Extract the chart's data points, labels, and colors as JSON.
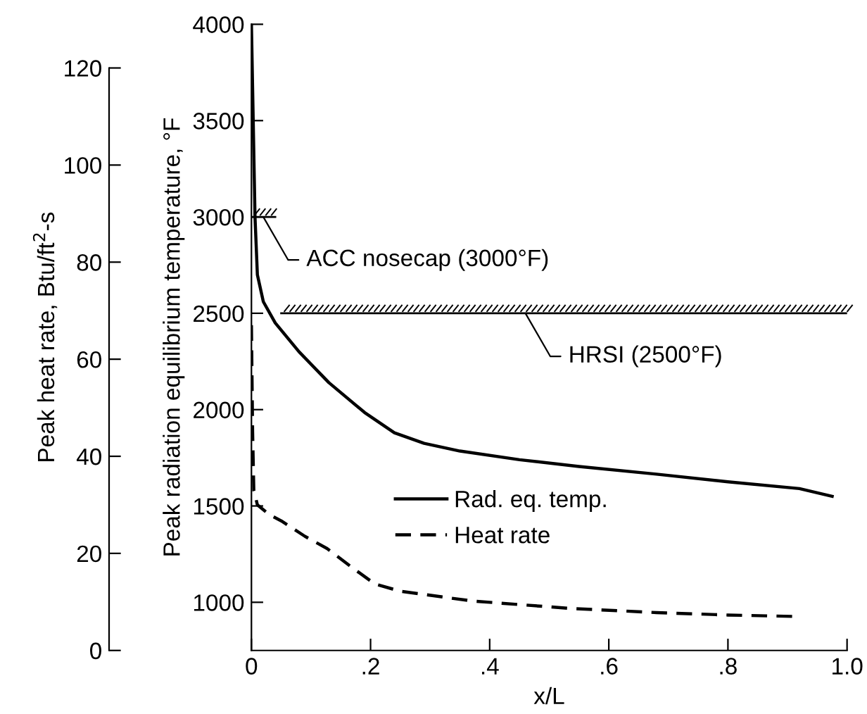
{
  "chart_data": {
    "type": "line",
    "xlabel": "x/L",
    "ylabel": "Peak radiation equilibrium temperature, °F",
    "y2label": "Peak heat rate, Btu/ft$^{2}$-s",
    "xlim": [
      0,
      1.0
    ],
    "xticks": [
      {
        "value": 0,
        "label": "0"
      },
      {
        "value": 0.2,
        "label": ".2"
      },
      {
        "value": 0.4,
        "label": ".4"
      },
      {
        "value": 0.6,
        "label": ".6"
      },
      {
        "value": 0.8,
        "label": ".8"
      },
      {
        "value": 1.0,
        "label": "1.0"
      }
    ],
    "ylim": [
      750,
      4000
    ],
    "yticks": [
      1000,
      1500,
      2000,
      2500,
      3000,
      3500,
      4000
    ],
    "y2lim": [
      0,
      129
    ],
    "y2ticks": [
      0,
      20,
      40,
      60,
      80,
      100,
      120
    ],
    "series": [
      {
        "name": "Rad. eq. temp.",
        "color": "#000000",
        "line_style": "solid",
        "axis": "y",
        "x": [
          0,
          0.003,
          0.006,
          0.01,
          0.02,
          0.04,
          0.08,
          0.13,
          0.19,
          0.24,
          0.29,
          0.35,
          0.45,
          0.55,
          0.68,
          0.8,
          0.92,
          0.975
        ],
        "values": [
          4000,
          3500,
          3000,
          2700,
          2560,
          2450,
          2300,
          2140,
          1985,
          1880,
          1825,
          1785,
          1740,
          1705,
          1665,
          1625,
          1590,
          1550
        ]
      },
      {
        "name": "Heat rate",
        "color": "#000000",
        "line_style": "dashed",
        "axis": "y2",
        "x": [
          0,
          0.002,
          0.004,
          0.01,
          0.03,
          0.05,
          0.09,
          0.127,
          0.17,
          0.207,
          0.25,
          0.37,
          0.53,
          0.68,
          0.8,
          0.915
        ],
        "values": [
          67,
          45,
          33,
          30,
          28,
          26.7,
          23.5,
          21,
          17,
          13.7,
          12.2,
          10.2,
          8.7,
          7.8,
          7.3,
          7.0
        ]
      },
      {
        "color": "#000000",
        "line_style": "solid",
        "axis": "y",
        "x": [
          0,
          0.04
        ],
        "values": [
          3000,
          3000
        ]
      },
      {
        "color": "#000000",
        "line_style": "solid",
        "axis": "y",
        "x": [
          0.05,
          1.0
        ],
        "values": [
          2500,
          2500
        ]
      }
    ],
    "annotations": [
      {
        "text": "ACC nosecap (3000°F)",
        "x": 0.02,
        "y": 3000
      },
      {
        "text": "HRSI (2500°F)",
        "x": 0.46,
        "y": 2500
      }
    ],
    "legend": "bottom",
    "grid": false,
    "marker": "none"
  }
}
